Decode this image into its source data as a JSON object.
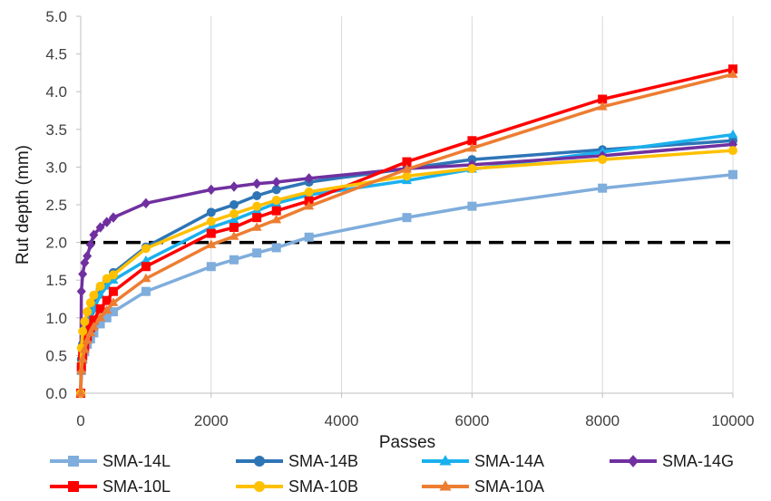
{
  "chart_data": {
    "type": "line",
    "xlabel": "Passes",
    "ylabel": "Rut depth (mm)",
    "xlim": [
      0,
      10000
    ],
    "ylim": [
      0,
      5
    ],
    "xticks": [
      0,
      2000,
      4000,
      6000,
      8000,
      10000
    ],
    "xtick_labels": [
      "0",
      "2000",
      "4000",
      "6000",
      "8000",
      "10000"
    ],
    "yticks": [
      0,
      0.5,
      1,
      1.5,
      2,
      2.5,
      3,
      3.5,
      4,
      4.5,
      5
    ],
    "ytick_labels": [
      "0.0",
      "0.5",
      "1.0",
      "1.5",
      "2.0",
      "2.5",
      "3.0",
      "3.5",
      "4.0",
      "4.5",
      "5.0"
    ],
    "grid": "vertical",
    "legend_position": "bottom",
    "reference_line": {
      "y": 2.0,
      "style": "dashed",
      "color": "#000000"
    },
    "series": [
      {
        "name": "SMA-14L",
        "color": "#7FADDC",
        "marker": "square",
        "x": [
          0,
          10,
          30,
          60,
          100,
          150,
          200,
          300,
          400,
          500,
          1000,
          2000,
          2350,
          2700,
          3000,
          3500,
          5000,
          6000,
          8000,
          10000
        ],
        "y": [
          0,
          0.3,
          0.45,
          0.55,
          0.65,
          0.72,
          0.8,
          0.92,
          1.0,
          1.08,
          1.35,
          1.68,
          1.77,
          1.86,
          1.93,
          2.07,
          2.33,
          2.48,
          2.72,
          2.9
        ]
      },
      {
        "name": "SMA-14B",
        "color": "#2E75B6",
        "marker": "circle",
        "x": [
          0,
          10,
          30,
          60,
          100,
          150,
          200,
          300,
          400,
          500,
          1000,
          2000,
          2350,
          2700,
          3000,
          3500,
          5000,
          6000,
          8000,
          10000
        ],
        "y": [
          0,
          0.45,
          0.65,
          0.8,
          0.95,
          1.08,
          1.2,
          1.38,
          1.5,
          1.6,
          1.94,
          2.4,
          2.5,
          2.62,
          2.7,
          2.8,
          2.98,
          3.1,
          3.23,
          3.35
        ]
      },
      {
        "name": "SMA-14A",
        "color": "#1AB0EE",
        "marker": "triangle",
        "x": [
          0,
          10,
          30,
          60,
          100,
          150,
          200,
          300,
          400,
          500,
          1000,
          2000,
          2350,
          2700,
          3000,
          3500,
          5000,
          6000,
          8000,
          10000
        ],
        "y": [
          0,
          0.4,
          0.6,
          0.75,
          0.9,
          1.02,
          1.12,
          1.3,
          1.42,
          1.5,
          1.76,
          2.2,
          2.3,
          2.42,
          2.52,
          2.63,
          2.82,
          2.97,
          3.2,
          3.43
        ]
      },
      {
        "name": "SMA-14G",
        "color": "#7030A0",
        "marker": "diamond",
        "x": [
          0,
          10,
          30,
          60,
          100,
          150,
          200,
          300,
          400,
          500,
          1000,
          2000,
          2350,
          2700,
          3000,
          3500,
          5000,
          6000,
          8000,
          10000
        ],
        "y": [
          0,
          1.35,
          1.58,
          1.73,
          1.82,
          1.97,
          2.1,
          2.2,
          2.27,
          2.33,
          2.52,
          2.7,
          2.74,
          2.78,
          2.8,
          2.85,
          2.98,
          3.03,
          3.15,
          3.3
        ]
      },
      {
        "name": "SMA-10L",
        "color": "#FF0000",
        "marker": "square",
        "x": [
          0,
          10,
          30,
          60,
          100,
          150,
          200,
          300,
          400,
          500,
          1000,
          2000,
          2350,
          2700,
          3000,
          3500,
          5000,
          6000,
          8000,
          10000
        ],
        "y": [
          0,
          0.35,
          0.5,
          0.62,
          0.75,
          0.87,
          0.97,
          1.12,
          1.23,
          1.35,
          1.68,
          2.12,
          2.2,
          2.33,
          2.42,
          2.55,
          3.07,
          3.35,
          3.9,
          4.3
        ]
      },
      {
        "name": "SMA-10B",
        "color": "#FFC000",
        "marker": "circle",
        "x": [
          0,
          10,
          30,
          60,
          100,
          150,
          200,
          300,
          400,
          500,
          1000,
          2000,
          2350,
          2700,
          3000,
          3500,
          5000,
          6000,
          8000,
          10000
        ],
        "y": [
          0,
          0.6,
          0.82,
          0.95,
          1.08,
          1.2,
          1.3,
          1.42,
          1.52,
          1.57,
          1.92,
          2.28,
          2.38,
          2.48,
          2.56,
          2.67,
          2.88,
          2.98,
          3.1,
          3.22
        ]
      },
      {
        "name": "SMA-10A",
        "color": "#ED7D31",
        "marker": "triangle",
        "x": [
          0,
          10,
          30,
          60,
          100,
          150,
          200,
          300,
          400,
          500,
          1000,
          2000,
          2350,
          2700,
          3000,
          3500,
          5000,
          6000,
          8000,
          10000
        ],
        "y": [
          0,
          0.3,
          0.45,
          0.58,
          0.7,
          0.8,
          0.88,
          1.0,
          1.1,
          1.2,
          1.52,
          1.97,
          2.08,
          2.2,
          2.3,
          2.48,
          2.97,
          3.25,
          3.8,
          4.23
        ]
      }
    ]
  }
}
